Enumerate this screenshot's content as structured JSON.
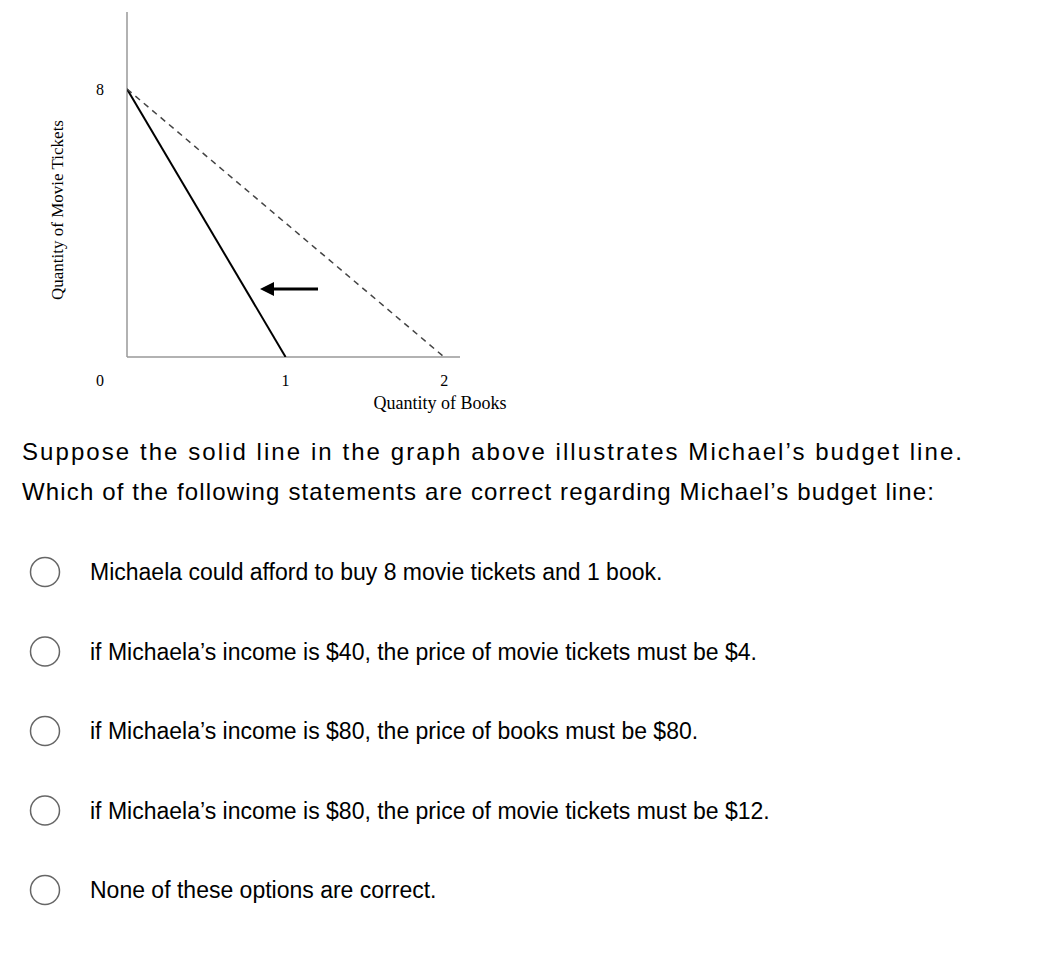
{
  "chart_data": {
    "type": "line",
    "x_label": "Quantity of Books",
    "y_label": "Quantity of Movie Tickets",
    "xlim": [
      0,
      2.1
    ],
    "ylim": [
      0,
      10.3
    ],
    "xticks": [
      0,
      1,
      2
    ],
    "yticks": [
      8
    ],
    "grid": false,
    "series": [
      {
        "x": [
          0,
          1
        ],
        "values": [
          8,
          0
        ],
        "color": "#000000",
        "line_style": "solid"
      },
      {
        "x": [
          0,
          2
        ],
        "values": [
          8,
          0
        ],
        "color": "#444444",
        "line_style": "dashed"
      }
    ]
  },
  "question": {
    "lines": [
      "Suppose the solid line in the graph above illustrates Michael’s budget line.",
      "Which of the following statements are correct regarding Michael’s budget line:"
    ]
  },
  "options": [
    "Michaela could afford to buy 8 movie tickets and 1 book.",
    "if Michaela’s income is $40, the price of movie tickets must be $4.",
    "if Michaela’s income is $80, the price of books must be $80.",
    "if Michaela’s income is $80, the price of movie tickets must be $12.",
    "None of these options are correct."
  ]
}
